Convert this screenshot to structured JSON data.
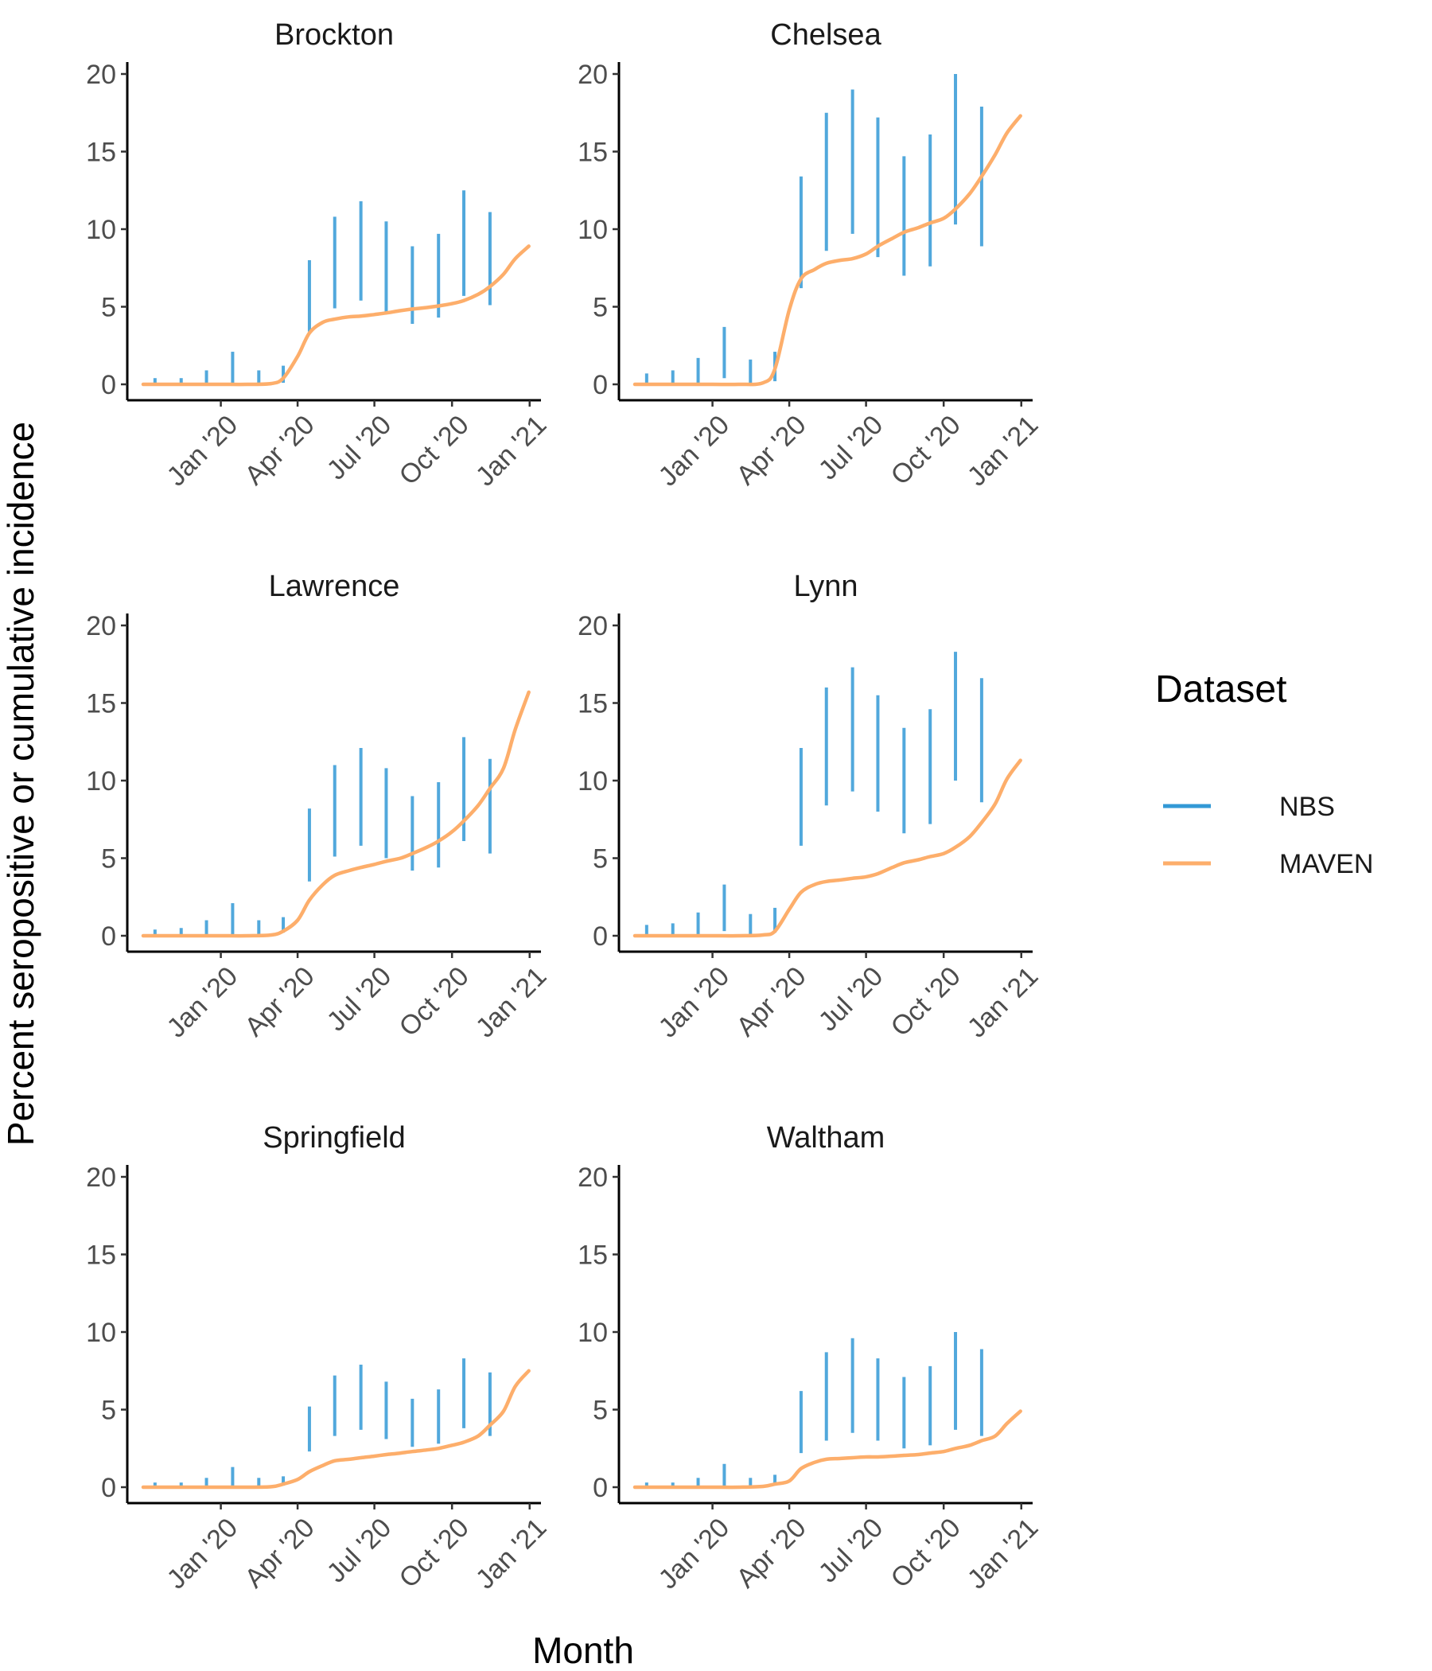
{
  "chart_data": {
    "type": "line",
    "layout": "faceted 3x2",
    "ylabel": "Percent seropositive or cumulative incidence",
    "xlabel": "Month",
    "ylim": [
      0,
      20
    ],
    "yticks": [
      0,
      5,
      10,
      15,
      20
    ],
    "xlim": [
      "2019-10-01",
      "2021-01-05"
    ],
    "xticks": [
      {
        "date": "2020-01-01",
        "label": "Jan '20"
      },
      {
        "date": "2020-04-01",
        "label": "Apr '20"
      },
      {
        "date": "2020-07-01",
        "label": "Jul '20"
      },
      {
        "date": "2020-10-01",
        "label": "Oct '20"
      },
      {
        "date": "2021-01-01",
        "label": "Jan '21"
      }
    ],
    "grid": false,
    "legend": {
      "title": "Dataset",
      "placement": "right",
      "entries": [
        {
          "name": "NBS",
          "color": "#3399d6"
        },
        {
          "name": "MAVEN",
          "color": "#fdae6b"
        }
      ]
    },
    "colors": {
      "NBS": "#3399d6",
      "MAVEN": "#fdae6b"
    },
    "nbs_dates": [
      "2019-10-15",
      "2019-11-15",
      "2019-12-15",
      "2020-01-15",
      "2020-02-15",
      "2020-03-15",
      "2020-04-15",
      "2020-05-15",
      "2020-06-15",
      "2020-07-15",
      "2020-08-15",
      "2020-09-15",
      "2020-10-15",
      "2020-11-15"
    ],
    "maven_dates": [
      "2019-10-01",
      "2019-11-01",
      "2019-12-01",
      "2020-01-01",
      "2020-02-01",
      "2020-03-01",
      "2020-03-15",
      "2020-04-01",
      "2020-04-15",
      "2020-05-01",
      "2020-05-15",
      "2020-06-01",
      "2020-06-15",
      "2020-07-01",
      "2020-07-15",
      "2020-08-01",
      "2020-08-15",
      "2020-09-01",
      "2020-09-15",
      "2020-10-01",
      "2020-10-15",
      "2020-11-01",
      "2020-11-15",
      "2020-12-01",
      "2020-12-15",
      "2020-12-31"
    ],
    "panels": [
      {
        "title": "Brockton",
        "nbs": [
          [
            0,
            0.4
          ],
          [
            0,
            0.4
          ],
          [
            0,
            0.9
          ],
          [
            0,
            2.1
          ],
          [
            0,
            0.9
          ],
          [
            0.1,
            1.2
          ],
          [
            3.4,
            8.0
          ],
          [
            4.9,
            10.8
          ],
          [
            5.4,
            11.8
          ],
          [
            4.6,
            10.5
          ],
          [
            3.9,
            8.9
          ],
          [
            4.3,
            9.7
          ],
          [
            5.7,
            12.5
          ],
          [
            5.1,
            11.1
          ]
        ],
        "maven": [
          0,
          0,
          0,
          0,
          0,
          0.05,
          0.4,
          1.8,
          3.3,
          4.0,
          4.2,
          4.35,
          4.4,
          4.5,
          4.6,
          4.75,
          4.85,
          4.95,
          5.05,
          5.2,
          5.4,
          5.8,
          6.3,
          7.1,
          8.1,
          8.9
        ]
      },
      {
        "title": "Chelsea",
        "nbs": [
          [
            0,
            0.7
          ],
          [
            0,
            0.9
          ],
          [
            0,
            1.7
          ],
          [
            0.4,
            3.7
          ],
          [
            0,
            1.6
          ],
          [
            0.2,
            2.1
          ],
          [
            6.2,
            13.4
          ],
          [
            8.6,
            17.5
          ],
          [
            9.7,
            19.0
          ],
          [
            8.2,
            17.2
          ],
          [
            7.0,
            14.7
          ],
          [
            7.6,
            16.1
          ],
          [
            10.3,
            20.0
          ],
          [
            8.9,
            17.9
          ]
        ],
        "maven": [
          0,
          0,
          0,
          0,
          0,
          0.1,
          1.0,
          4.8,
          6.8,
          7.4,
          7.8,
          8.0,
          8.1,
          8.4,
          8.9,
          9.4,
          9.8,
          10.1,
          10.4,
          10.7,
          11.3,
          12.3,
          13.4,
          14.8,
          16.2,
          17.3
        ]
      },
      {
        "title": "Lawrence",
        "nbs": [
          [
            0,
            0.4
          ],
          [
            0,
            0.5
          ],
          [
            0,
            1.0
          ],
          [
            0,
            2.1
          ],
          [
            0,
            1.0
          ],
          [
            0.2,
            1.2
          ],
          [
            3.5,
            8.2
          ],
          [
            5.1,
            11.0
          ],
          [
            5.8,
            12.1
          ],
          [
            5.0,
            10.8
          ],
          [
            4.2,
            9.0
          ],
          [
            4.4,
            9.9
          ],
          [
            6.1,
            12.8
          ],
          [
            5.3,
            11.4
          ]
        ],
        "maven": [
          0,
          0,
          0,
          0,
          0,
          0.05,
          0.3,
          1.0,
          2.3,
          3.3,
          3.9,
          4.2,
          4.4,
          4.6,
          4.8,
          5.0,
          5.3,
          5.7,
          6.1,
          6.7,
          7.4,
          8.4,
          9.5,
          10.8,
          13.3,
          15.7
        ]
      },
      {
        "title": "Lynn",
        "nbs": [
          [
            0,
            0.7
          ],
          [
            0,
            0.8
          ],
          [
            0,
            1.5
          ],
          [
            0.3,
            3.3
          ],
          [
            0,
            1.4
          ],
          [
            0.2,
            1.8
          ],
          [
            5.8,
            12.1
          ],
          [
            8.4,
            16.0
          ],
          [
            9.3,
            17.3
          ],
          [
            8.0,
            15.5
          ],
          [
            6.6,
            13.4
          ],
          [
            7.2,
            14.6
          ],
          [
            10.0,
            18.3
          ],
          [
            8.6,
            16.6
          ]
        ],
        "maven": [
          0,
          0,
          0,
          0,
          0,
          0.05,
          0.3,
          1.7,
          2.8,
          3.3,
          3.5,
          3.6,
          3.7,
          3.8,
          4.0,
          4.4,
          4.7,
          4.9,
          5.1,
          5.3,
          5.7,
          6.4,
          7.3,
          8.5,
          10.1,
          11.3
        ]
      },
      {
        "title": "Springfield",
        "nbs": [
          [
            0,
            0.3
          ],
          [
            0,
            0.3
          ],
          [
            0,
            0.6
          ],
          [
            0,
            1.3
          ],
          [
            0,
            0.6
          ],
          [
            0.1,
            0.7
          ],
          [
            2.3,
            5.2
          ],
          [
            3.3,
            7.2
          ],
          [
            3.7,
            7.9
          ],
          [
            3.1,
            6.8
          ],
          [
            2.6,
            5.7
          ],
          [
            2.8,
            6.3
          ],
          [
            3.8,
            8.3
          ],
          [
            3.3,
            7.4
          ]
        ],
        "maven": [
          0,
          0,
          0,
          0,
          0,
          0.03,
          0.2,
          0.5,
          1.0,
          1.4,
          1.7,
          1.8,
          1.9,
          2.0,
          2.1,
          2.2,
          2.3,
          2.4,
          2.5,
          2.7,
          2.9,
          3.3,
          4.0,
          4.9,
          6.5,
          7.5
        ]
      },
      {
        "title": "Waltham",
        "nbs": [
          [
            0,
            0.3
          ],
          [
            0,
            0.3
          ],
          [
            0,
            0.6
          ],
          [
            0,
            1.5
          ],
          [
            0,
            0.6
          ],
          [
            0.1,
            0.8
          ],
          [
            2.2,
            6.2
          ],
          [
            3.0,
            8.7
          ],
          [
            3.5,
            9.6
          ],
          [
            3.0,
            8.3
          ],
          [
            2.5,
            7.1
          ],
          [
            2.7,
            7.8
          ],
          [
            3.7,
            10.0
          ],
          [
            3.3,
            8.9
          ]
        ],
        "maven": [
          0,
          0,
          0,
          0,
          0,
          0.05,
          0.2,
          0.4,
          1.2,
          1.6,
          1.8,
          1.85,
          1.9,
          1.95,
          1.95,
          2.0,
          2.05,
          2.1,
          2.2,
          2.3,
          2.5,
          2.7,
          3.0,
          3.3,
          4.1,
          4.9
        ]
      }
    ]
  }
}
